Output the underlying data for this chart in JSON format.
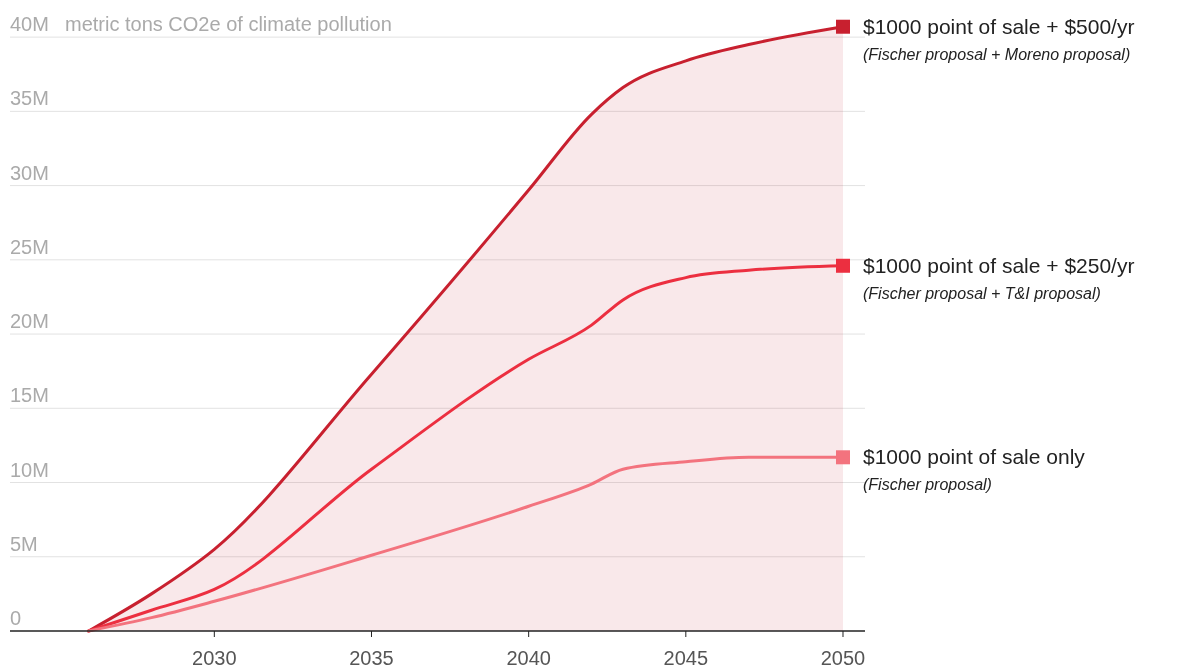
{
  "chart_data": {
    "type": "line",
    "ylabel": "metric tons CO2e of climate pollution",
    "xlim": [
      2023.5,
      2050.7
    ],
    "xticks": [
      2030,
      2035,
      2040,
      2045,
      2050
    ],
    "ylim": [
      0,
      42.5
    ],
    "yticks": [
      0,
      {
        "value": 5,
        "label": "5M"
      },
      {
        "value": 10,
        "label": "10M"
      },
      {
        "value": 15,
        "label": "15M"
      },
      {
        "value": 20,
        "label": "20M"
      },
      {
        "value": 25,
        "label": "25M"
      },
      {
        "value": 30,
        "label": "30M"
      },
      {
        "value": 35,
        "label": "35M"
      },
      {
        "value": 40,
        "label": "40M"
      }
    ],
    "grid": "y",
    "legend": "right",
    "series": [
      {
        "name": "$1000 point of sale + $500/yr",
        "type": "area",
        "color": "#c8202f",
        "x": [
          2026,
          2028,
          2030,
          2035,
          2040,
          2042,
          2043,
          2045,
          2047,
          2050
        ],
        "values": [
          0,
          2.5,
          5.5,
          17.3,
          29.7,
          34.8,
          36.6,
          38.4,
          39.5,
          40.7
        ]
      },
      {
        "name": "$1000 point of sale + $250/yr",
        "color": "#ec2f40",
        "x": [
          2026,
          2028,
          2030,
          2035,
          2040,
          2042,
          2043,
          2045,
          2047,
          2050
        ],
        "values": [
          0,
          1.4,
          2.8,
          10.9,
          18.3,
          20.6,
          22.3,
          23.8,
          24.3,
          24.6
        ]
      },
      {
        "name": "$1000 point of sale only",
        "color": "#f3737e",
        "x": [
          2026,
          2028,
          2030,
          2035,
          2040,
          2042,
          2043,
          2045,
          2047,
          2050
        ],
        "values": [
          0,
          0.9,
          2.0,
          5.1,
          8.4,
          9.9,
          10.9,
          11.4,
          11.7,
          11.7
        ]
      }
    ],
    "annotations": [
      "(Fischer proposal + Moreno proposal)",
      "(Fischer proposal + T&I proposal)",
      "(Fischer proposal)"
    ]
  }
}
